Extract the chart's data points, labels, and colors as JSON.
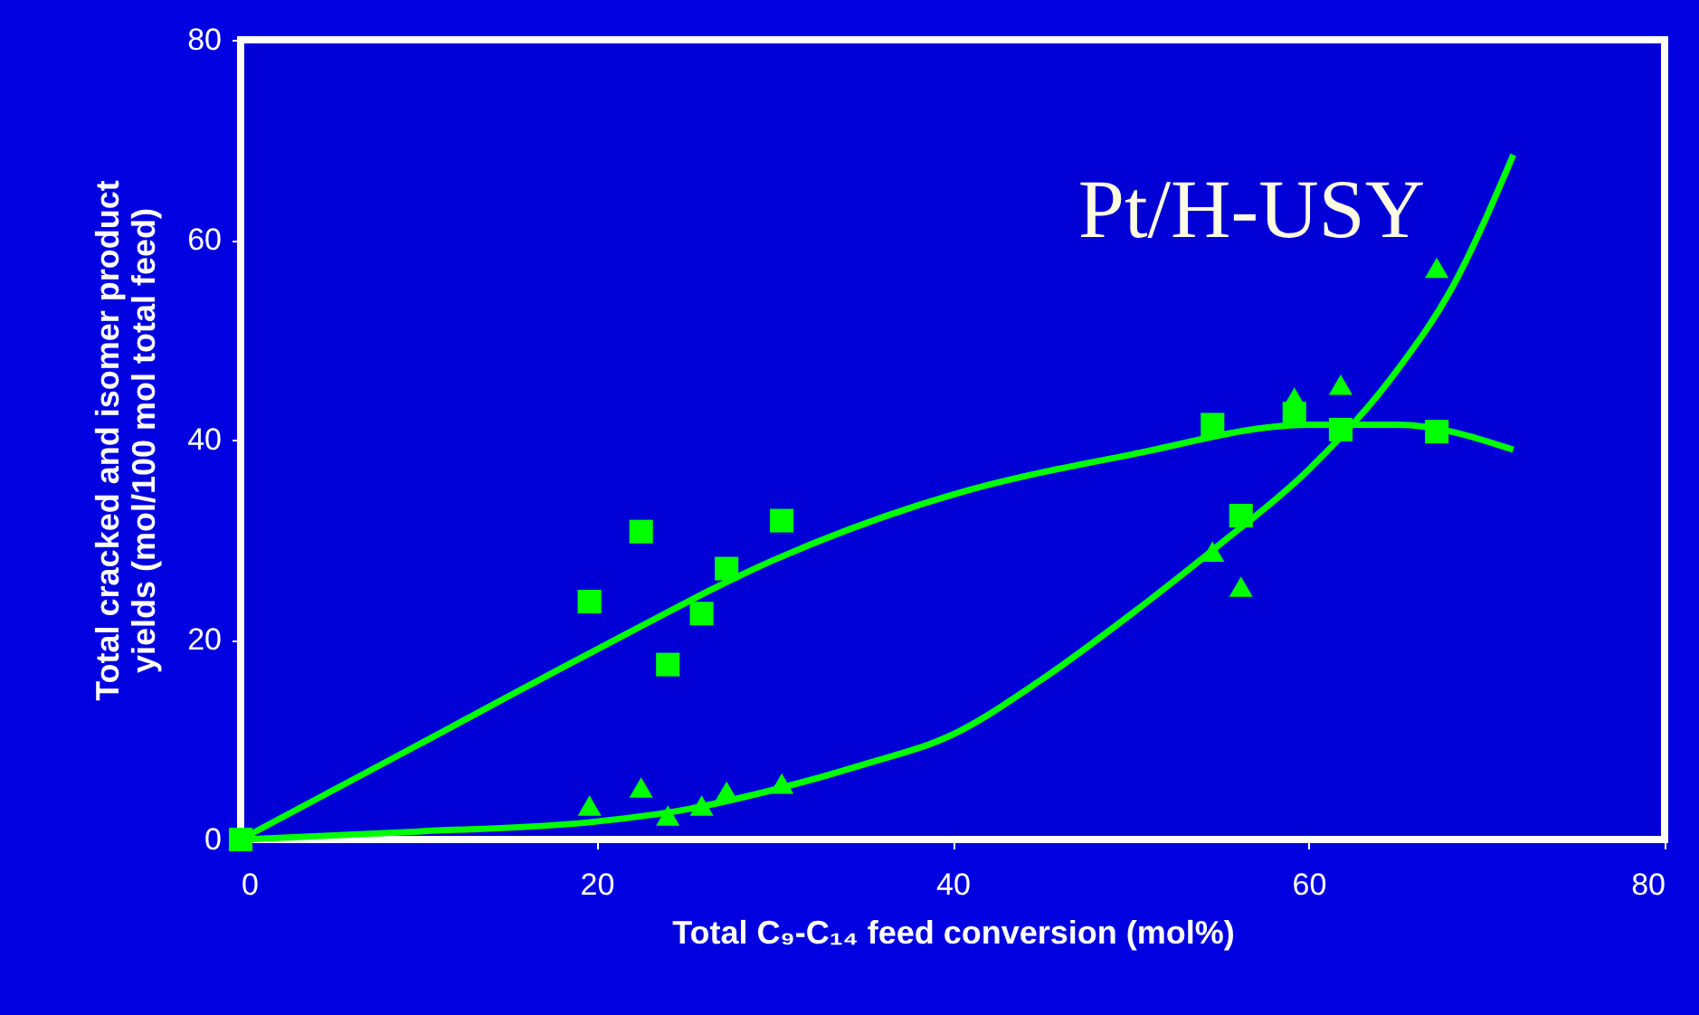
{
  "chart_data": {
    "type": "scatter",
    "xlabel": "Total C₉-C₁₄ feed conversion (mol%)",
    "ylabel": "Total cracked and isomer product\nyields (mol/100 mol total feed)",
    "annotations": [
      "Pt/H-USY"
    ],
    "xlim": [
      0,
      80
    ],
    "xticks": [
      0,
      20,
      40,
      60,
      80
    ],
    "ylim": [
      0,
      80
    ],
    "yticks": [
      0,
      20,
      40,
      60,
      80
    ],
    "series": [
      {
        "type": "line",
        "line_style": "solid",
        "color": "#00ff00",
        "x": [
          0,
          10,
          20,
          30,
          40,
          50,
          60,
          65,
          71.5
        ],
        "values": [
          0,
          9.5,
          19,
          28,
          34.5,
          38.5,
          41.5,
          41.5,
          39
        ]
      },
      {
        "type": "line",
        "line_style": "solid",
        "color": "#00ff00",
        "x": [
          0,
          10,
          20,
          25,
          30,
          35,
          40,
          45,
          50,
          55,
          60,
          65,
          68,
          71.5
        ],
        "values": [
          0,
          0.8,
          1.8,
          3,
          5,
          7.5,
          10.5,
          16,
          22.5,
          29.5,
          37,
          47,
          55,
          68.5
        ]
      },
      {
        "marker": "triangle",
        "color": "#00ff00",
        "x": [
          19.6,
          22.5,
          24.0,
          25.9,
          27.3,
          30.4,
          54.6,
          56.2,
          59.2,
          61.8,
          67.2
        ],
        "values": [
          3.4,
          5.2,
          2.4,
          3.4,
          4.8,
          5.6,
          28.8,
          25.3,
          44.2,
          45.5,
          57.2
        ]
      },
      {
        "marker": "square",
        "color": "#00ff00",
        "x": [
          0,
          19.6,
          22.5,
          24.0,
          25.9,
          27.3,
          30.4,
          54.6,
          56.2,
          59.2,
          61.8,
          67.2
        ],
        "values": [
          0,
          23.8,
          30.8,
          17.5,
          22.6,
          27.1,
          31.9,
          41.5,
          32.4,
          42.6,
          41.0,
          40.8
        ]
      }
    ]
  }
}
